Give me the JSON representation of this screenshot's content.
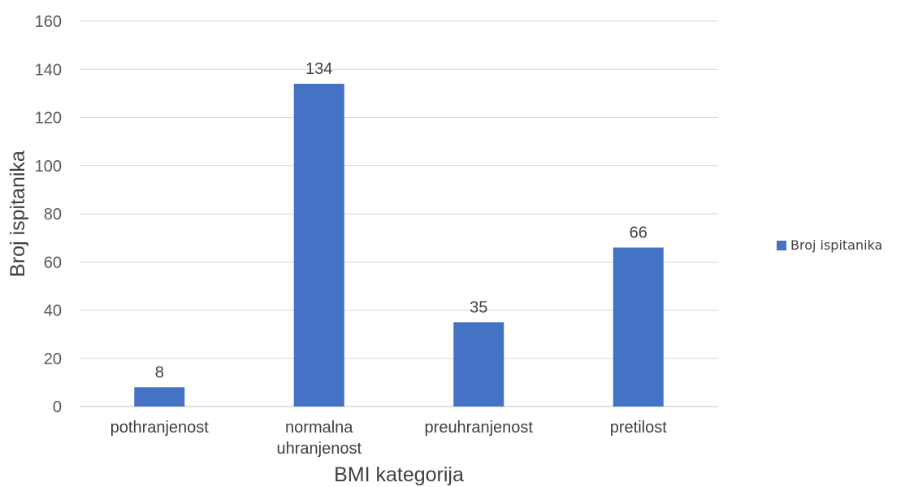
{
  "chart_data": {
    "type": "bar",
    "categories": [
      [
        "pothranjenost"
      ],
      [
        "normalna",
        "uhranjenost"
      ],
      [
        "preuhranjenost"
      ],
      [
        "pretilost"
      ]
    ],
    "series": [
      {
        "name": "Broj ispitanika",
        "values": [
          8,
          134,
          35,
          66
        ],
        "color": "#4472C4"
      }
    ],
    "xlabel": "BMI kategorija",
    "ylabel": "Broj ispitanika",
    "ylim": [
      0,
      160
    ],
    "yticks": [
      0,
      20,
      40,
      60,
      80,
      100,
      120,
      140,
      160
    ],
    "grid": true,
    "legend_position": "right"
  }
}
